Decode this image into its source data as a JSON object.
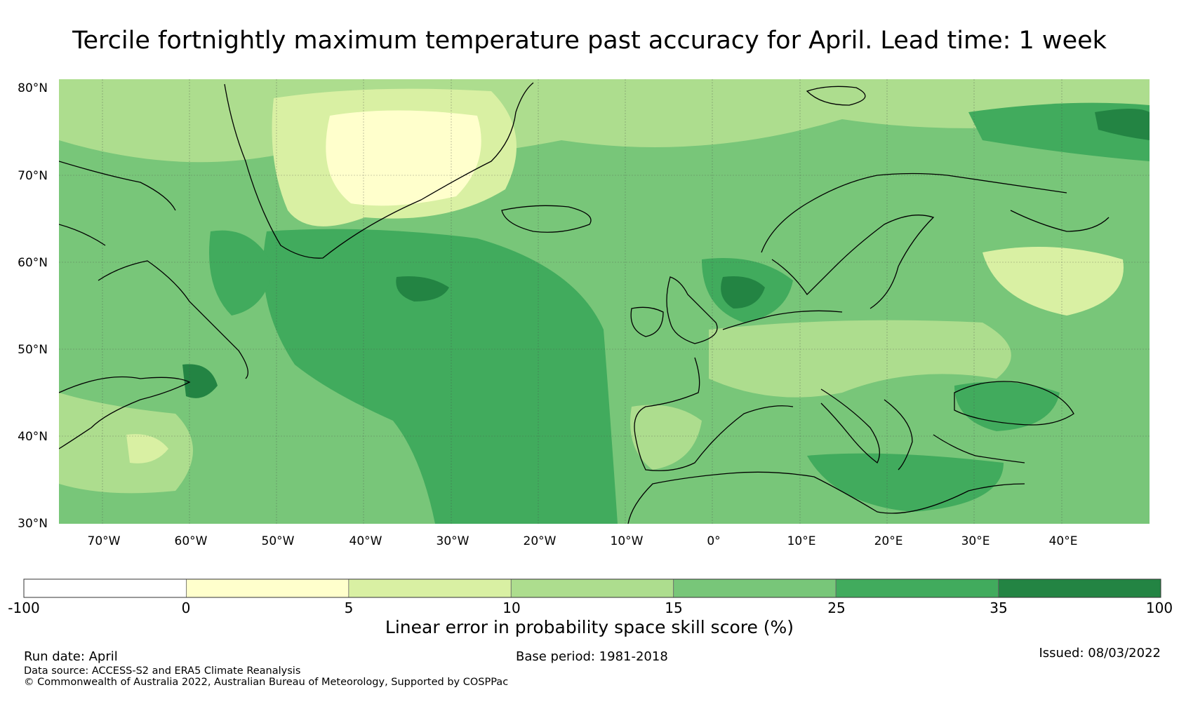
{
  "title": "Tercile fortnightly maximum temperature past accuracy for April. Lead time: 1 week",
  "lat_labels": [
    "80°N",
    "70°N",
    "60°N",
    "50°N",
    "40°N",
    "30°N"
  ],
  "lon_labels": [
    "70°W",
    "60°W",
    "50°W",
    "40°W",
    "30°W",
    "20°W",
    "10°W",
    "0°",
    "10°E",
    "20°E",
    "30°E",
    "40°E"
  ],
  "colorbar": {
    "title": "Linear error in probability space skill score (%)",
    "ticks": [
      "-100",
      "0",
      "5",
      "10",
      "15",
      "25",
      "35",
      "100"
    ],
    "colors": [
      "#ffffff",
      "#ffffcc",
      "#d9f0a3",
      "#addd8e",
      "#78c679",
      "#41ab5d",
      "#238443"
    ]
  },
  "footer": {
    "run_date": "Run date: April",
    "base_period": "Base period: 1981-2018",
    "issued": "Issued: 08/03/2022",
    "data_source": "Data source: ACCESS-S2 and ERA5 Climate Reanalysis",
    "copyright": "© Commonwealth of Australia 2022, Australian Bureau of Meteorology, Supported by COSPPac"
  }
}
